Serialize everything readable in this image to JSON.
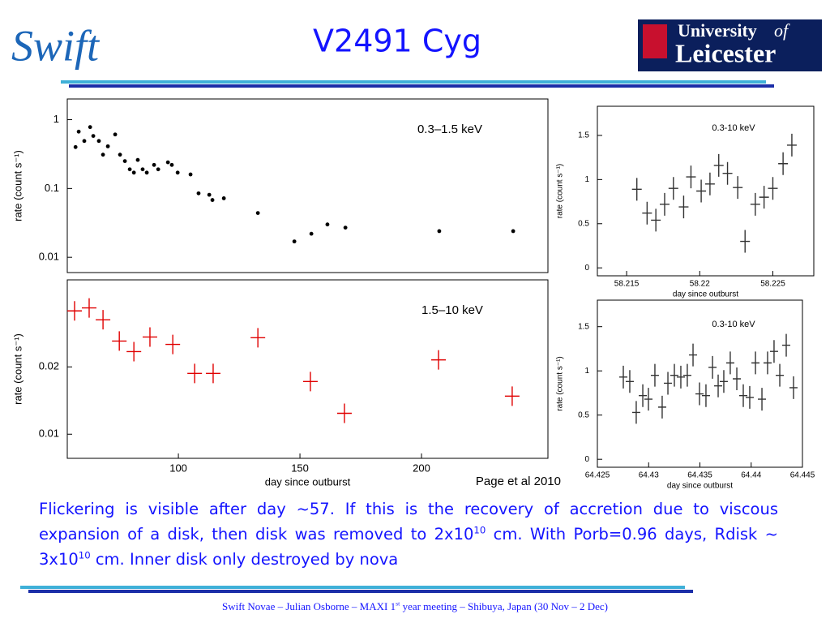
{
  "slide": {
    "title": "V2491 Cyg",
    "logo_left": "Swift",
    "logo_right": {
      "line1": "University",
      "of": "of",
      "line2": "Leicester"
    },
    "body": [
      "Flickering is visible after day ~57. If this is the recovery of accretion due to viscous expansion of a disk, then disk was removed to 2x10",
      "10",
      " cm. With Porb=0.96 days, Rdisk ~ 3x10",
      "10",
      " cm. Inner disk only destroyed by nova"
    ],
    "credit": "Page et al 2010",
    "footer": [
      "Swift Novae – Julian Osborne – MAXI 1",
      "st",
      " year meeting – Shibuya, Japan (30 Nov – 2 Dec)"
    ]
  },
  "chart_data": [
    {
      "type": "scatter",
      "annotation": "0.3–1.5 keV",
      "ylabel": "rate (count s⁻¹)",
      "log_y": true,
      "marker": "dot",
      "color": "#000000",
      "xlim": [
        54.3,
        252
      ],
      "ylim": [
        0.006,
        2
      ],
      "yticks": [
        0.01,
        0.1,
        1
      ],
      "x": [
        57.7,
        59,
        61.3,
        63.7,
        65,
        67.3,
        69,
        71,
        74,
        76,
        78,
        80,
        81.7,
        83.3,
        85.3,
        87,
        90,
        91.7,
        95.7,
        97.3,
        99.7,
        105,
        108.3,
        112.7,
        114,
        118.7,
        132.7,
        147.7,
        154.7,
        161.3,
        168.7,
        207.3,
        237.7
      ],
      "values": [
        0.4,
        0.67,
        0.49,
        0.78,
        0.58,
        0.49,
        0.31,
        0.41,
        0.61,
        0.31,
        0.25,
        0.19,
        0.17,
        0.26,
        0.19,
        0.17,
        0.22,
        0.19,
        0.24,
        0.22,
        0.17,
        0.16,
        0.085,
        0.081,
        0.068,
        0.072,
        0.044,
        0.017,
        0.022,
        0.03,
        0.027,
        0.024,
        0.024
      ]
    },
    {
      "type": "scatter",
      "annotation": "1.5–10 keV",
      "ylabel": "rate (count s⁻¹)",
      "xlabel": "day since outburst",
      "log_y": true,
      "marker": "cross",
      "color": "#e00000",
      "xlim": [
        54.3,
        252
      ],
      "ylim": [
        0.0078,
        0.049
      ],
      "xticks": [
        100,
        150,
        200
      ],
      "yticks": [
        0.01,
        0.02
      ],
      "x": [
        57.3,
        63.3,
        69,
        75.7,
        81.7,
        88.3,
        97.7,
        106.7,
        114.3,
        132.7,
        154.3,
        168.3,
        207,
        237.3
      ],
      "values": [
        0.0356,
        0.0367,
        0.0325,
        0.0261,
        0.0234,
        0.0272,
        0.0252,
        0.0187,
        0.0187,
        0.027,
        0.0172,
        0.0124,
        0.0215,
        0.0148
      ]
    },
    {
      "type": "scatter",
      "annotation": "0.3-10 keV",
      "ylabel": "rate (count s⁻¹)",
      "xlabel": "day since outburst",
      "log_y": false,
      "marker": "cross",
      "color": "#333333",
      "xlim": [
        58.213,
        58.2278
      ],
      "ylim": [
        -0.09,
        1.83
      ],
      "xticks": [
        58.215,
        58.22,
        58.225
      ],
      "yticks": [
        0,
        0.5,
        1,
        1.5
      ],
      "x": [
        58.2157,
        58.2164,
        58.217,
        58.2176,
        58.2182,
        58.2189,
        58.2194,
        58.2201,
        58.2207,
        58.2213,
        58.2219,
        58.2226,
        58.2231,
        58.2238,
        58.2244,
        58.225,
        58.2257,
        58.2263
      ],
      "values": [
        0.89,
        0.62,
        0.54,
        0.72,
        0.9,
        0.69,
        1.03,
        0.87,
        0.95,
        1.16,
        1.07,
        0.91,
        0.3,
        0.72,
        0.8,
        0.9,
        1.18,
        1.39
      ]
    },
    {
      "type": "scatter",
      "annotation": "0.3-10 keV",
      "ylabel": "rate (count s⁻¹)",
      "xlabel": "day since outburst",
      "log_y": false,
      "marker": "cross",
      "color": "#333333",
      "xlim": [
        64.425,
        64.445
      ],
      "ylim": [
        -0.09,
        1.8
      ],
      "xticks": [
        64.425,
        64.43,
        64.435,
        64.44,
        64.445
      ],
      "yticks": [
        0,
        0.5,
        1,
        1.5
      ],
      "x": [
        64.42753,
        64.42816,
        64.42879,
        64.42943,
        64.42998,
        64.43061,
        64.43132,
        64.43188,
        64.43251,
        64.43314,
        64.43377,
        64.43433,
        64.43496,
        64.43559,
        64.43623,
        64.43678,
        64.43733,
        64.43796,
        64.4386,
        64.43923,
        64.43986,
        64.44042,
        64.44105,
        64.4416,
        64.44223,
        64.44279,
        64.44342,
        64.44413
      ],
      "values": [
        0.93,
        0.88,
        0.53,
        0.72,
        0.68,
        0.95,
        0.59,
        0.86,
        0.95,
        0.93,
        0.95,
        1.18,
        0.74,
        0.72,
        1.04,
        0.83,
        0.88,
        1.09,
        0.91,
        0.72,
        0.7,
        1.09,
        0.68,
        1.09,
        1.22,
        0.95,
        1.29,
        0.81
      ]
    }
  ]
}
